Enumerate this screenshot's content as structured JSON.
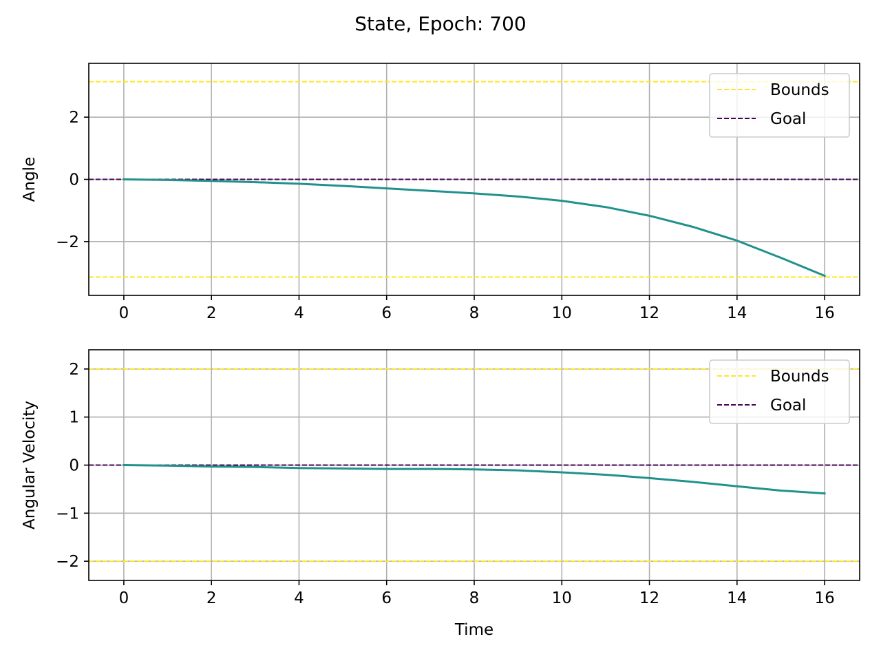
{
  "figure": {
    "title": "State, Epoch: 700"
  },
  "colors": {
    "trajectory": "#21918c",
    "bounds": "#fde725",
    "goal": "#440154",
    "grid": "#b0b0b0",
    "frame": "#000000"
  },
  "chart_data": [
    {
      "type": "line",
      "title": "",
      "xlabel": "",
      "ylabel": "Angle",
      "xlim": [
        -0.8,
        16.8
      ],
      "ylim": [
        -3.73,
        3.73
      ],
      "xticks": [
        0,
        2,
        4,
        6,
        8,
        10,
        12,
        14,
        16
      ],
      "xtick_labels": [
        "0",
        "2",
        "4",
        "6",
        "8",
        "10",
        "12",
        "14",
        "16"
      ],
      "yticks": [
        -2,
        0,
        2
      ],
      "ytick_labels": [
        "−2",
        "0",
        "2"
      ],
      "grid": true,
      "legend": {
        "position": "top-right",
        "entries": [
          "Bounds",
          "Goal"
        ]
      },
      "reference_lines": [
        {
          "name": "Bounds",
          "y": 3.1416,
          "style": "dashed",
          "color": "#fde725"
        },
        {
          "name": "Bounds",
          "y": -3.1416,
          "style": "dashed",
          "color": "#fde725"
        },
        {
          "name": "Goal",
          "y": 0,
          "style": "dashed",
          "color": "#440154"
        }
      ],
      "series": [
        {
          "color": "#21918c",
          "x": [
            0,
            1,
            2,
            3,
            4,
            5,
            6,
            7,
            8,
            9,
            10,
            11,
            12,
            13,
            14,
            15,
            16
          ],
          "values": [
            0.0,
            -0.02,
            -0.05,
            -0.09,
            -0.14,
            -0.21,
            -0.29,
            -0.37,
            -0.45,
            -0.55,
            -0.69,
            -0.89,
            -1.17,
            -1.53,
            -1.97,
            -2.52,
            -3.1
          ]
        }
      ]
    },
    {
      "type": "line",
      "title": "",
      "xlabel": "Time",
      "ylabel": "Angular Velocity",
      "xlim": [
        -0.8,
        16.8
      ],
      "ylim": [
        -2.4,
        2.4
      ],
      "xticks": [
        0,
        2,
        4,
        6,
        8,
        10,
        12,
        14,
        16
      ],
      "xtick_labels": [
        "0",
        "2",
        "4",
        "6",
        "8",
        "10",
        "12",
        "14",
        "16"
      ],
      "yticks": [
        -2,
        -1,
        0,
        1,
        2
      ],
      "ytick_labels": [
        "−2",
        "−1",
        "0",
        "1",
        "2"
      ],
      "grid": true,
      "legend": {
        "position": "top-right",
        "entries": [
          "Bounds",
          "Goal"
        ]
      },
      "reference_lines": [
        {
          "name": "Bounds",
          "y": 2,
          "style": "dashed",
          "color": "#fde725"
        },
        {
          "name": "Bounds",
          "y": -2,
          "style": "dashed",
          "color": "#fde725"
        },
        {
          "name": "Goal",
          "y": 0,
          "style": "dashed",
          "color": "#440154"
        }
      ],
      "series": [
        {
          "color": "#21918c",
          "x": [
            0,
            1,
            2,
            3,
            4,
            5,
            6,
            7,
            8,
            9,
            10,
            11,
            12,
            13,
            14,
            15,
            16
          ],
          "values": [
            0.0,
            -0.01,
            -0.03,
            -0.04,
            -0.06,
            -0.07,
            -0.08,
            -0.08,
            -0.09,
            -0.11,
            -0.15,
            -0.2,
            -0.27,
            -0.35,
            -0.44,
            -0.53,
            -0.59
          ]
        }
      ]
    }
  ]
}
